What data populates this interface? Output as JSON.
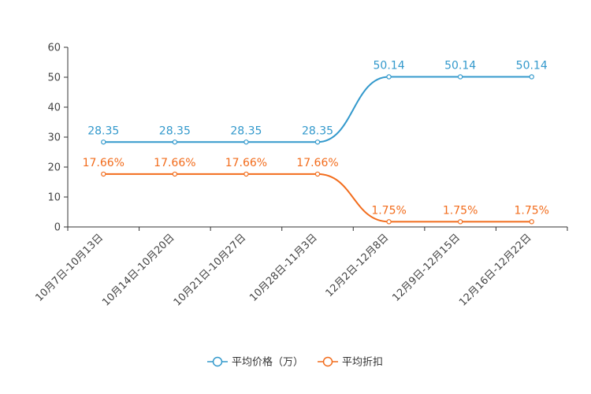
{
  "chart_data": {
    "type": "line",
    "title": "",
    "xlabel": "",
    "ylabel": "",
    "ylim": [
      0,
      60
    ],
    "yticks": [
      0,
      10,
      20,
      30,
      40,
      50,
      60
    ],
    "categories": [
      "10月7日-10月13日",
      "10月14日-10月20日",
      "10月21日-10月27日",
      "10月28日-11月3日",
      "12月2日-12月8日",
      "12月9日-12月15日",
      "12月16日-12月22日"
    ],
    "series": [
      {
        "name": "平均价格（万）",
        "color": "#3399cc",
        "values": [
          28.35,
          28.35,
          28.35,
          28.35,
          50.14,
          50.14,
          50.14
        ],
        "labels": [
          "28.35",
          "28.35",
          "28.35",
          "28.35",
          "50.14",
          "50.14",
          "50.14"
        ]
      },
      {
        "name": "平均折扣",
        "color": "#f26c1c",
        "values": [
          17.66,
          17.66,
          17.66,
          17.66,
          1.75,
          1.75,
          1.75
        ],
        "labels": [
          "17.66%",
          "17.66%",
          "17.66%",
          "17.66%",
          "1.75%",
          "1.75%",
          "1.75%"
        ]
      }
    ],
    "legend_position": "bottom-center",
    "smooth": true,
    "grid": false
  }
}
